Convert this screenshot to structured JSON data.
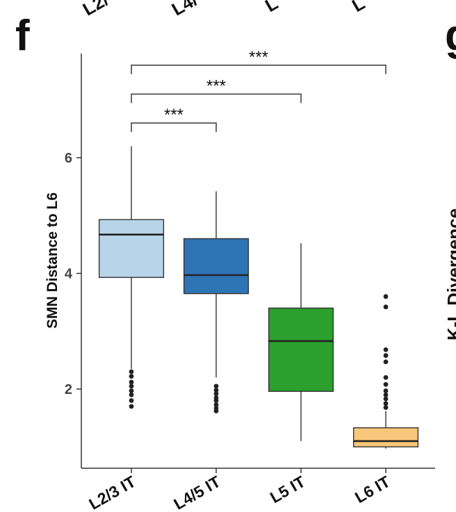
{
  "panel": {
    "label": "f",
    "cut_left_label": "g",
    "top_clipped_labels": [
      "L2/",
      "L4/",
      "L",
      "L"
    ],
    "cut_right_ylabel": "K-L Divergence"
  },
  "chart_data": {
    "type": "box",
    "title": "",
    "xlabel": "",
    "ylabel": "SMN Distance to L6",
    "ylim": [
      0.8,
      7.7
    ],
    "yticks": [
      2,
      4,
      6
    ],
    "ytick_labels": [
      "2",
      "4",
      "6"
    ],
    "grid": false,
    "categories": [
      "L2/3 IT",
      "L4/5 IT",
      "L5 IT",
      "L6 IT"
    ],
    "boxes": [
      {
        "category": "L2/3 IT",
        "color": "#b8d4e8",
        "q1": 3.93,
        "median": 4.67,
        "q3": 4.93,
        "whisker_low": 2.35,
        "whisker_high": 6.2,
        "outliers": [
          2.3,
          2.22,
          2.12,
          2.05,
          1.97,
          1.9,
          1.8,
          1.7
        ]
      },
      {
        "category": "L4/5 IT",
        "color": "#2e74b5",
        "q1": 3.65,
        "median": 3.97,
        "q3": 4.6,
        "whisker_low": 2.2,
        "whisker_high": 5.42,
        "outliers": [
          2.05,
          1.98,
          1.92,
          1.85,
          1.8,
          1.73,
          1.67,
          1.62
        ]
      },
      {
        "category": "L5 IT",
        "color": "#2ca02c",
        "q1": 1.96,
        "median": 2.83,
        "q3": 3.4,
        "whisker_low": 1.1,
        "whisker_high": 4.52,
        "outliers": []
      },
      {
        "category": "L6 IT",
        "color": "#f9c77a",
        "q1": 1.0,
        "median": 1.1,
        "q3": 1.33,
        "whisker_low": 0.97,
        "whisker_high": 1.62,
        "outliers": [
          3.6,
          3.42,
          2.68,
          2.58,
          2.47,
          2.2,
          2.08,
          1.97,
          1.9,
          1.83,
          1.75,
          1.68
        ]
      }
    ],
    "significance": [
      {
        "from": "L2/3 IT",
        "to": "L6 IT",
        "label": "***",
        "y": 7.6
      },
      {
        "from": "L2/3 IT",
        "to": "L5 IT",
        "label": "***",
        "y": 7.1
      },
      {
        "from": "L2/3 IT",
        "to": "L4/5 IT",
        "label": "***",
        "y": 6.6
      }
    ]
  }
}
